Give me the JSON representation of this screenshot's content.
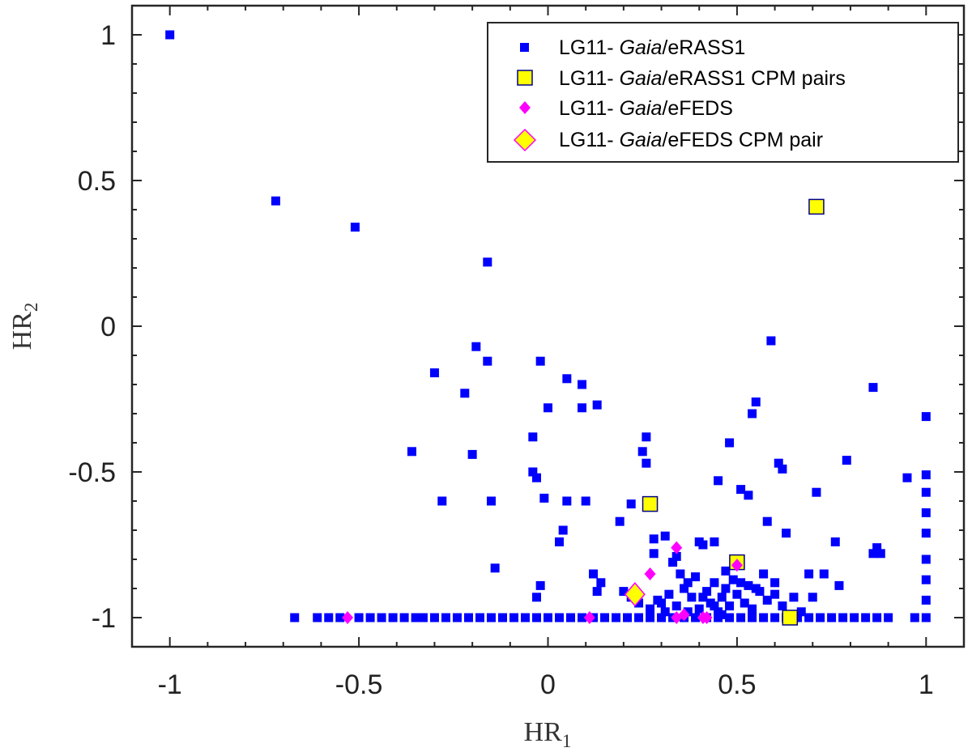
{
  "chart_data": {
    "type": "scatter",
    "title": "",
    "xlabel": "HR",
    "xlabel_sub": "1",
    "ylabel": "HR",
    "ylabel_sub": "2",
    "xlim": [
      -1.1,
      1.1
    ],
    "ylim": [
      -1.1,
      1.1
    ],
    "xticks": [
      -1,
      -0.5,
      0,
      0.5,
      1
    ],
    "yticks": [
      -1,
      -0.5,
      0,
      0.5,
      1
    ],
    "xtick_labels": [
      "-1",
      "-0.5",
      "0",
      "0.5",
      "1"
    ],
    "ytick_labels": [
      "-1",
      "-0.5",
      "0",
      "0.5",
      "1"
    ],
    "legend_position": "top-right",
    "series": [
      {
        "name": "LG11- Gaia/eRASS1",
        "legend_prefix": "LG11- ",
        "legend_italic": "Gaia",
        "legend_suffix": "/eRASS1",
        "marker": "square-small",
        "color": "#0000ff",
        "points": [
          [
            -1,
            1
          ],
          [
            -0.72,
            0.43
          ],
          [
            -0.51,
            0.34
          ],
          [
            -0.16,
            0.22
          ],
          [
            -0.3,
            -0.16
          ],
          [
            -0.19,
            -0.07
          ],
          [
            -0.16,
            -0.12
          ],
          [
            -0.02,
            -0.12
          ],
          [
            -0.22,
            -0.23
          ],
          [
            0.05,
            -0.18
          ],
          [
            0.09,
            -0.2
          ],
          [
            0.0,
            -0.28
          ],
          [
            0.09,
            -0.28
          ],
          [
            0.13,
            -0.27
          ],
          [
            -0.36,
            -0.43
          ],
          [
            -0.2,
            -0.44
          ],
          [
            -0.04,
            -0.38
          ],
          [
            -0.28,
            -0.6
          ],
          [
            -0.15,
            -0.6
          ],
          [
            -0.04,
            -0.5
          ],
          [
            -0.03,
            -0.52
          ],
          [
            -0.01,
            -0.59
          ],
          [
            0.05,
            -0.6
          ],
          [
            0.1,
            -0.6
          ],
          [
            -0.14,
            -0.83
          ],
          [
            0.04,
            -0.7
          ],
          [
            0.03,
            -0.74
          ],
          [
            -0.02,
            -0.89
          ],
          [
            -0.03,
            -0.93
          ],
          [
            0.12,
            -0.85
          ],
          [
            0.14,
            -0.88
          ],
          [
            0.13,
            -0.91
          ],
          [
            0.19,
            -0.67
          ],
          [
            0.22,
            -0.61
          ],
          [
            0.25,
            -0.43
          ],
          [
            0.26,
            -0.47
          ],
          [
            0.26,
            -0.38
          ],
          [
            0.28,
            -0.73
          ],
          [
            0.28,
            -0.78
          ],
          [
            0.31,
            -0.72
          ],
          [
            0.33,
            -0.81
          ],
          [
            0.34,
            -0.79
          ],
          [
            0.37,
            -0.88
          ],
          [
            0.4,
            -0.74
          ],
          [
            0.41,
            -0.75
          ],
          [
            0.44,
            -0.74
          ],
          [
            0.45,
            -0.53
          ],
          [
            0.48,
            -0.4
          ],
          [
            0.51,
            -0.56
          ],
          [
            0.53,
            -0.58
          ],
          [
            0.54,
            -0.3
          ],
          [
            0.55,
            -0.26
          ],
          [
            0.59,
            -0.05
          ],
          [
            0.61,
            -0.47
          ],
          [
            0.62,
            -0.49
          ],
          [
            0.58,
            -0.67
          ],
          [
            0.63,
            -0.71
          ],
          [
            0.71,
            -0.57
          ],
          [
            0.79,
            -0.46
          ],
          [
            0.76,
            -0.74
          ],
          [
            0.77,
            -0.89
          ],
          [
            0.73,
            -0.85
          ],
          [
            0.69,
            -0.85
          ],
          [
            0.86,
            -0.21
          ],
          [
            0.86,
            -0.78
          ],
          [
            0.87,
            -0.76
          ],
          [
            0.88,
            -0.78
          ],
          [
            0.95,
            -0.52
          ],
          [
            1,
            -0.31
          ],
          [
            1,
            -0.51
          ],
          [
            1,
            -0.57
          ],
          [
            1,
            -0.64
          ],
          [
            1,
            -0.71
          ],
          [
            1,
            -0.8
          ],
          [
            1,
            -0.87
          ],
          [
            1,
            -0.94
          ],
          [
            0.2,
            -0.91
          ],
          [
            0.22,
            -0.93
          ],
          [
            0.24,
            -0.95
          ],
          [
            0.27,
            -0.97
          ],
          [
            0.3,
            -0.95
          ],
          [
            0.32,
            -0.92
          ],
          [
            0.34,
            -0.96
          ],
          [
            0.36,
            -0.9
          ],
          [
            0.38,
            -0.93
          ],
          [
            0.4,
            -0.97
          ],
          [
            0.42,
            -0.91
          ],
          [
            0.43,
            -0.95
          ],
          [
            0.44,
            -0.88
          ],
          [
            0.45,
            -0.98
          ],
          [
            0.46,
            -0.93
          ],
          [
            0.47,
            -0.9
          ],
          [
            0.48,
            -0.96
          ],
          [
            0.49,
            -0.87
          ],
          [
            0.5,
            -0.92
          ],
          [
            0.52,
            -0.95
          ],
          [
            0.53,
            -0.89
          ],
          [
            0.54,
            -0.97
          ],
          [
            0.56,
            -0.91
          ],
          [
            0.58,
            -0.94
          ],
          [
            0.6,
            -0.88
          ],
          [
            0.62,
            -0.96
          ],
          [
            0.65,
            -0.93
          ],
          [
            0.67,
            -0.98
          ],
          [
            0.7,
            -0.93
          ],
          [
            0.35,
            -0.85
          ],
          [
            0.39,
            -0.86
          ],
          [
            0.41,
            -0.93
          ],
          [
            0.44,
            -0.96
          ],
          [
            0.47,
            -0.84
          ],
          [
            0.51,
            -0.88
          ],
          [
            0.55,
            -0.9
          ],
          [
            0.57,
            -0.85
          ],
          [
            0.6,
            -0.92
          ],
          [
            0.29,
            -0.94
          ],
          [
            0.31,
            -0.98
          ],
          [
            0.37,
            -0.98
          ],
          [
            0.46,
            -0.99
          ],
          [
            -0.67,
            -1
          ],
          [
            -0.61,
            -1
          ],
          [
            -0.58,
            -1
          ],
          [
            -0.55,
            -1
          ],
          [
            -0.5,
            -1
          ],
          [
            -0.47,
            -1
          ],
          [
            -0.44,
            -1
          ],
          [
            -0.41,
            -1
          ],
          [
            -0.38,
            -1
          ],
          [
            -0.35,
            -1
          ],
          [
            -0.33,
            -1
          ],
          [
            -0.3,
            -1
          ],
          [
            -0.27,
            -1
          ],
          [
            -0.24,
            -1
          ],
          [
            -0.21,
            -1
          ],
          [
            -0.18,
            -1
          ],
          [
            -0.15,
            -1
          ],
          [
            -0.12,
            -1
          ],
          [
            -0.09,
            -1
          ],
          [
            -0.06,
            -1
          ],
          [
            -0.03,
            -1
          ],
          [
            0,
            -1
          ],
          [
            0.03,
            -1
          ],
          [
            0.06,
            -1
          ],
          [
            0.09,
            -1
          ],
          [
            0.12,
            -1
          ],
          [
            0.15,
            -1
          ],
          [
            0.18,
            -1
          ],
          [
            0.21,
            -1
          ],
          [
            0.24,
            -1
          ],
          [
            0.27,
            -1
          ],
          [
            0.3,
            -1
          ],
          [
            0.33,
            -1
          ],
          [
            0.36,
            -1
          ],
          [
            0.39,
            -1
          ],
          [
            0.42,
            -1
          ],
          [
            0.45,
            -1
          ],
          [
            0.48,
            -1
          ],
          [
            0.51,
            -1
          ],
          [
            0.54,
            -1
          ],
          [
            0.57,
            -1
          ],
          [
            0.6,
            -1
          ],
          [
            0.63,
            -1
          ],
          [
            0.66,
            -1
          ],
          [
            0.69,
            -1
          ],
          [
            0.72,
            -1
          ],
          [
            0.75,
            -1
          ],
          [
            0.78,
            -1
          ],
          [
            0.81,
            -1
          ],
          [
            0.84,
            -1
          ],
          [
            0.87,
            -1
          ],
          [
            0.9,
            -1
          ],
          [
            0.97,
            -1
          ],
          [
            1,
            -1
          ]
        ]
      },
      {
        "name": "LG11- Gaia/eRASS1 CPM pairs",
        "legend_prefix": "LG11- ",
        "legend_italic": "Gaia",
        "legend_suffix": "/eRASS1 CPM pairs",
        "marker": "square-large",
        "color": "#ffff00",
        "edge": "#00008b",
        "points": [
          [
            0.71,
            0.41
          ],
          [
            0.27,
            -0.61
          ],
          [
            0.5,
            -0.81
          ],
          [
            0.64,
            -1
          ]
        ]
      },
      {
        "name": "LG11- Gaia/eFEDS",
        "legend_prefix": "LG11- ",
        "legend_italic": "Gaia",
        "legend_suffix": "/eFEDS",
        "marker": "diamond-small",
        "color": "#ff00ff",
        "points": [
          [
            -0.53,
            -1
          ],
          [
            0.11,
            -1
          ],
          [
            0.27,
            -0.85
          ],
          [
            0.34,
            -0.76
          ],
          [
            0.34,
            -1
          ],
          [
            0.36,
            -0.99
          ],
          [
            0.41,
            -1
          ],
          [
            0.42,
            -1
          ],
          [
            0.5,
            -0.82
          ]
        ]
      },
      {
        "name": "LG11- Gaia/eFEDS CPM pair",
        "legend_prefix": "LG11- ",
        "legend_italic": "Gaia",
        "legend_suffix": "/eFEDS CPM pair",
        "marker": "diamond-large",
        "color": "#ffff00",
        "edge": "#ff00ff",
        "points": [
          [
            0.23,
            -0.92
          ]
        ]
      }
    ]
  }
}
